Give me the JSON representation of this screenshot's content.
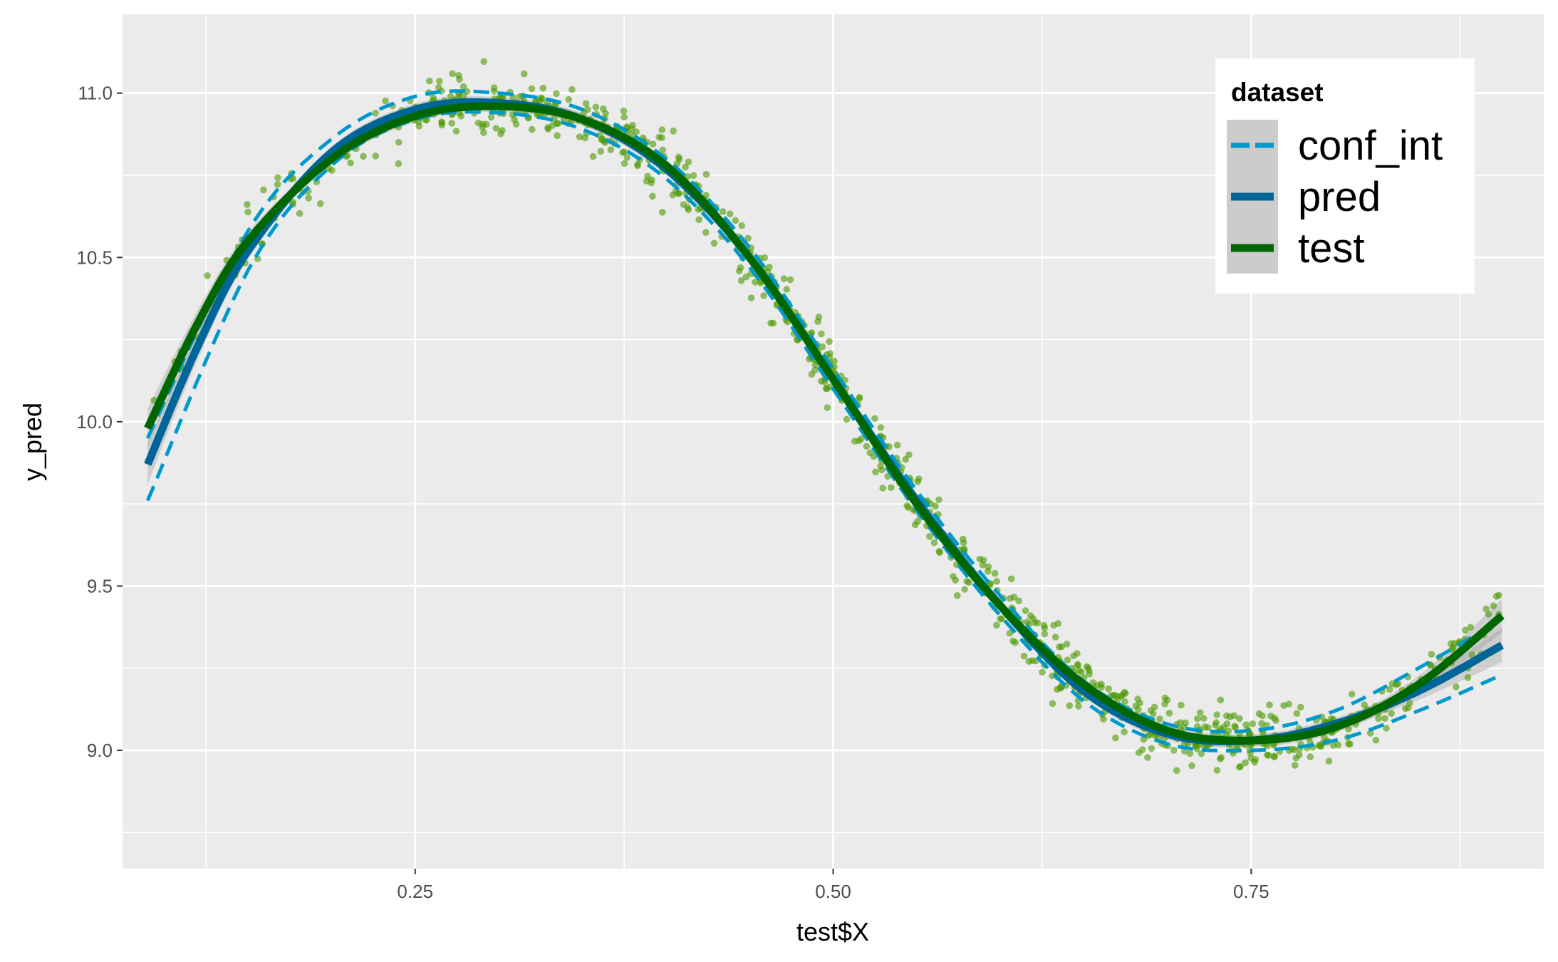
{
  "chart_data": {
    "type": "scatter",
    "xlabel": "test$X",
    "ylabel": "y_pred",
    "xlim": [
      0.075,
      0.925
    ],
    "ylim": [
      8.64,
      11.24
    ],
    "x_ticks": [
      0.25,
      0.5,
      0.75
    ],
    "x_tick_labels": [
      "0.25",
      "0.50",
      "0.75"
    ],
    "y_ticks": [
      9.0,
      9.5,
      10.0,
      10.5,
      11.0
    ],
    "y_tick_labels": [
      "9.0",
      "9.5",
      "10.0",
      "10.5",
      "11.0"
    ],
    "grid": true,
    "legend": {
      "title": "dataset",
      "placement": "top-right",
      "entries": [
        {
          "label": "conf_int",
          "color": "#0099cc",
          "style": "dashed"
        },
        {
          "label": "pred",
          "color": "#006699",
          "style": "solid"
        },
        {
          "label": "test",
          "color": "#006600",
          "style": "solid"
        }
      ]
    },
    "points_color": "#4d9900",
    "curves": {
      "test": [
        [
          0.09,
          9.98
        ],
        [
          0.12,
          10.3
        ],
        [
          0.15,
          10.55
        ],
        [
          0.2,
          10.8
        ],
        [
          0.25,
          10.93
        ],
        [
          0.3,
          10.96
        ],
        [
          0.35,
          10.92
        ],
        [
          0.4,
          10.78
        ],
        [
          0.45,
          10.5
        ],
        [
          0.5,
          10.13
        ],
        [
          0.55,
          9.75
        ],
        [
          0.6,
          9.44
        ],
        [
          0.65,
          9.2
        ],
        [
          0.7,
          9.06
        ],
        [
          0.75,
          9.03
        ],
        [
          0.8,
          9.07
        ],
        [
          0.85,
          9.2
        ],
        [
          0.9,
          9.41
        ]
      ],
      "pred": [
        [
          0.09,
          9.87
        ],
        [
          0.12,
          10.23
        ],
        [
          0.15,
          10.52
        ],
        [
          0.2,
          10.82
        ],
        [
          0.25,
          10.95
        ],
        [
          0.3,
          10.97
        ],
        [
          0.35,
          10.92
        ],
        [
          0.4,
          10.77
        ],
        [
          0.45,
          10.5
        ],
        [
          0.5,
          10.13
        ],
        [
          0.55,
          9.76
        ],
        [
          0.6,
          9.44
        ],
        [
          0.65,
          9.18
        ],
        [
          0.7,
          9.05
        ],
        [
          0.75,
          9.03
        ],
        [
          0.8,
          9.08
        ],
        [
          0.85,
          9.18
        ],
        [
          0.9,
          9.32
        ]
      ],
      "conf_int_upper": [
        [
          0.09,
          9.95
        ],
        [
          0.15,
          10.58
        ],
        [
          0.2,
          10.86
        ],
        [
          0.25,
          10.99
        ],
        [
          0.3,
          11.0
        ],
        [
          0.35,
          10.95
        ],
        [
          0.4,
          10.8
        ],
        [
          0.45,
          10.53
        ],
        [
          0.5,
          10.16
        ],
        [
          0.55,
          9.79
        ],
        [
          0.6,
          9.47
        ],
        [
          0.65,
          9.21
        ],
        [
          0.7,
          9.08
        ],
        [
          0.75,
          9.06
        ],
        [
          0.8,
          9.12
        ],
        [
          0.85,
          9.25
        ],
        [
          0.9,
          9.4
        ]
      ],
      "conf_int_lower": [
        [
          0.09,
          9.76
        ],
        [
          0.15,
          10.46
        ],
        [
          0.2,
          10.78
        ],
        [
          0.25,
          10.92
        ],
        [
          0.3,
          10.94
        ],
        [
          0.35,
          10.89
        ],
        [
          0.4,
          10.74
        ],
        [
          0.45,
          10.47
        ],
        [
          0.5,
          10.1
        ],
        [
          0.55,
          9.73
        ],
        [
          0.6,
          9.41
        ],
        [
          0.65,
          9.15
        ],
        [
          0.7,
          9.02
        ],
        [
          0.75,
          9.0
        ],
        [
          0.8,
          9.03
        ],
        [
          0.85,
          9.12
        ],
        [
          0.9,
          9.23
        ]
      ]
    }
  }
}
